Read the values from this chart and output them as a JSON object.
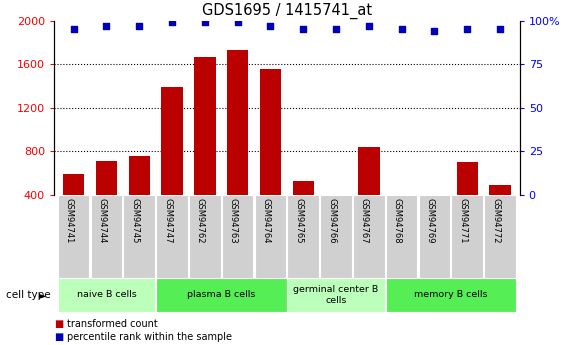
{
  "title": "GDS1695 / 1415741_at",
  "samples": [
    "GSM94741",
    "GSM94744",
    "GSM94745",
    "GSM94747",
    "GSM94762",
    "GSM94763",
    "GSM94764",
    "GSM94765",
    "GSM94766",
    "GSM94767",
    "GSM94768",
    "GSM94769",
    "GSM94771",
    "GSM94772"
  ],
  "transformed_count": [
    590,
    710,
    760,
    1390,
    1670,
    1730,
    1560,
    530,
    400,
    840,
    380,
    390,
    700,
    490
  ],
  "percentile_rank": [
    95,
    97,
    97,
    99,
    99,
    99,
    97,
    95,
    95,
    97,
    95,
    94,
    95,
    95
  ],
  "cell_groups": [
    {
      "label": "naive B cells",
      "start": 0,
      "end": 3,
      "color": "#bbffbb"
    },
    {
      "label": "plasma B cells",
      "start": 3,
      "end": 7,
      "color": "#55ee55"
    },
    {
      "label": "germinal center B\ncells",
      "start": 7,
      "end": 10,
      "color": "#bbffbb"
    },
    {
      "label": "memory B cells",
      "start": 10,
      "end": 14,
      "color": "#55ee55"
    }
  ],
  "bar_color": "#bb0000",
  "dot_color": "#0000bb",
  "ylim_left": [
    400,
    2000
  ],
  "ylim_right": [
    0,
    100
  ],
  "yticks_left": [
    400,
    800,
    1200,
    1600,
    2000
  ],
  "yticks_right": [
    0,
    25,
    50,
    75,
    100
  ],
  "ylabel_right_labels": [
    "0",
    "25",
    "50",
    "75",
    "100%"
  ],
  "legend_red_label": "transformed count",
  "legend_blue_label": "percentile rank within the sample",
  "cell_type_label": "cell type"
}
